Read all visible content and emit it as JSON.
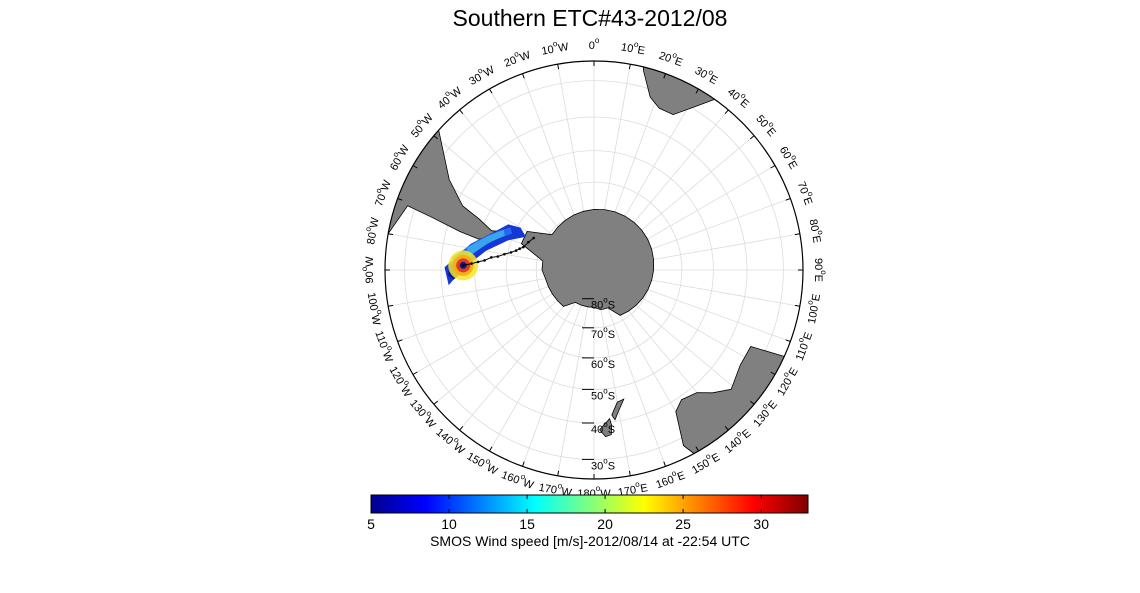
{
  "title": "Southern ETC#43-2012/08",
  "map": {
    "projection": "south-polar-stereographic",
    "lat_bound": -25,
    "land_color": "#808080",
    "swath_colors": [
      "#0a1a8a",
      "#1537d6",
      "#2a6cf0",
      "#3bb1ee"
    ],
    "storm_core_colors": [
      "#e33a1c",
      "#f5ab13",
      "#f6e82a"
    ],
    "storm_track": [
      [
        -88,
        -46.5
      ],
      [
        -87,
        -49
      ],
      [
        -86,
        -51
      ],
      [
        -85,
        -53
      ],
      [
        -83,
        -55
      ],
      [
        -82,
        -57
      ],
      [
        -80,
        -59
      ],
      [
        -78,
        -61
      ],
      [
        -76,
        -62.5
      ],
      [
        -74,
        -63.5
      ],
      [
        -72,
        -64.5
      ],
      [
        -67,
        -65.5
      ],
      [
        -62,
        -66.5
      ]
    ],
    "lon_labels": [
      {
        "lon": 0,
        "text": "0"
      },
      {
        "lon": 10,
        "text": "10",
        "hemi": "E"
      },
      {
        "lon": 20,
        "text": "20",
        "hemi": "E"
      },
      {
        "lon": 30,
        "text": "30",
        "hemi": "E"
      },
      {
        "lon": 40,
        "text": "40",
        "hemi": "E"
      },
      {
        "lon": 50,
        "text": "50",
        "hemi": "E"
      },
      {
        "lon": 60,
        "text": "60",
        "hemi": "E"
      },
      {
        "lon": 70,
        "text": "70",
        "hemi": "E"
      },
      {
        "lon": 80,
        "text": "80",
        "hemi": "E"
      },
      {
        "lon": 90,
        "text": "90",
        "hemi": "E"
      },
      {
        "lon": 100,
        "text": "100",
        "hemi": "E"
      },
      {
        "lon": 110,
        "text": "110",
        "hemi": "E"
      },
      {
        "lon": 120,
        "text": "120",
        "hemi": "E"
      },
      {
        "lon": 130,
        "text": "130",
        "hemi": "E"
      },
      {
        "lon": 140,
        "text": "140",
        "hemi": "E"
      },
      {
        "lon": 150,
        "text": "150",
        "hemi": "E"
      },
      {
        "lon": 160,
        "text": "160",
        "hemi": "E"
      },
      {
        "lon": 170,
        "text": "170",
        "hemi": "E"
      },
      {
        "lon": 180,
        "text": "180",
        "hemi": "W"
      },
      {
        "lon": -170,
        "text": "170",
        "hemi": "W"
      },
      {
        "lon": -160,
        "text": "160",
        "hemi": "W"
      },
      {
        "lon": -150,
        "text": "150",
        "hemi": "W"
      },
      {
        "lon": -140,
        "text": "140",
        "hemi": "W"
      },
      {
        "lon": -130,
        "text": "130",
        "hemi": "W"
      },
      {
        "lon": -120,
        "text": "120",
        "hemi": "W"
      },
      {
        "lon": -110,
        "text": "110",
        "hemi": "W"
      },
      {
        "lon": -100,
        "text": "100",
        "hemi": "W"
      },
      {
        "lon": -90,
        "text": "90",
        "hemi": "W"
      },
      {
        "lon": -80,
        "text": "80",
        "hemi": "W"
      },
      {
        "lon": -70,
        "text": "70",
        "hemi": "W"
      },
      {
        "lon": -60,
        "text": "60",
        "hemi": "W"
      },
      {
        "lon": -50,
        "text": "50",
        "hemi": "W"
      },
      {
        "lon": -40,
        "text": "40",
        "hemi": "W"
      },
      {
        "lon": -30,
        "text": "30",
        "hemi": "W"
      },
      {
        "lon": -20,
        "text": "20",
        "hemi": "W"
      },
      {
        "lon": -10,
        "text": "10",
        "hemi": "W"
      }
    ],
    "lat_labels": [
      {
        "lat": -80,
        "text": "80",
        "hemi": "S"
      },
      {
        "lat": -70,
        "text": "70",
        "hemi": "S"
      },
      {
        "lat": -60,
        "text": "60",
        "hemi": "S"
      },
      {
        "lat": -50,
        "text": "50",
        "hemi": "S"
      },
      {
        "lat": -40,
        "text": "40",
        "hemi": "S"
      },
      {
        "lat": -30,
        "text": "30",
        "hemi": "S"
      }
    ]
  },
  "colorbar": {
    "min": 5,
    "max": 33,
    "ticks": [
      5,
      10,
      15,
      20,
      25,
      30
    ],
    "colormap": "jet",
    "label": "SMOS Wind speed [m/s]-2012/08/14 at -22:54 UTC"
  }
}
